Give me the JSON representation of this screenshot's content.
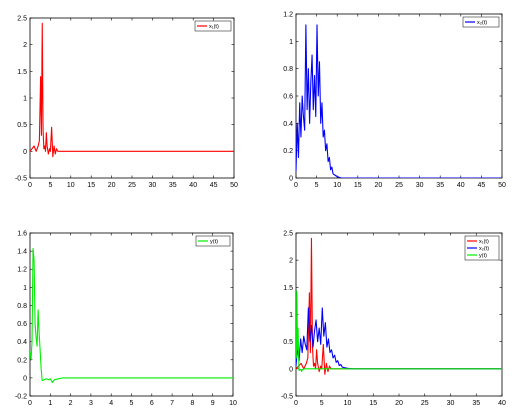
{
  "chart_data": [
    {
      "type": "line",
      "xlim": [
        0,
        50
      ],
      "ylim": [
        -0.5,
        2.5
      ],
      "xticks": [
        "0",
        "5",
        "10",
        "15",
        "20",
        "25",
        "30",
        "35",
        "40",
        "45",
        "50"
      ],
      "yticks": [
        "-0.5",
        "0",
        "0.5",
        "1",
        "1.5",
        "2",
        "2.5"
      ],
      "legend_position": "top-right",
      "series": [
        {
          "name": "x₁(t)",
          "color": "#ff0000",
          "x": [
            0,
            0.5,
            1,
            1.5,
            2,
            2.3,
            2.6,
            2.8,
            3,
            3.2,
            3.4,
            3.6,
            3.8,
            4,
            4.2,
            4.5,
            4.8,
            5,
            5.3,
            5.6,
            5.9,
            6.2,
            6.5,
            6.8,
            7,
            8,
            10,
            20,
            30,
            40,
            50
          ],
          "y": [
            0,
            0.05,
            0.1,
            0.0,
            0.1,
            0.2,
            1.4,
            0.3,
            2.4,
            0.4,
            0.05,
            0.1,
            0.0,
            0.35,
            0.1,
            -0.05,
            0.05,
            0.0,
            0.45,
            -0.1,
            0.1,
            -0.05,
            0.05,
            0.0,
            0.0,
            0.0,
            0.0,
            0.0,
            0.0,
            0.0,
            0.0
          ]
        }
      ]
    },
    {
      "type": "line",
      "xlim": [
        0,
        50
      ],
      "ylim": [
        0,
        1.2
      ],
      "xticks": [
        "0",
        "5",
        "10",
        "15",
        "20",
        "25",
        "30",
        "35",
        "40",
        "45",
        "50"
      ],
      "yticks": [
        "0",
        "0.2",
        "0.4",
        "0.6",
        "0.8",
        "1",
        "1.2"
      ],
      "legend_position": "top-right",
      "series": [
        {
          "name": "x₂(t)",
          "color": "#0000ff",
          "x": [
            0,
            0.3,
            0.6,
            0.9,
            1.2,
            1.5,
            1.8,
            2.1,
            2.4,
            2.7,
            3,
            3.3,
            3.6,
            3.9,
            4.2,
            4.5,
            4.8,
            5.1,
            5.4,
            5.7,
            6,
            6.3,
            6.6,
            6.9,
            7.2,
            7.5,
            7.8,
            8.1,
            8.4,
            8.7,
            9,
            9.5,
            10,
            11,
            12,
            15,
            20,
            30,
            40,
            50
          ],
          "y": [
            0.05,
            0.4,
            0.15,
            0.55,
            0.3,
            0.6,
            0.45,
            0.35,
            1.12,
            0.5,
            0.8,
            0.4,
            0.7,
            0.9,
            0.5,
            0.75,
            0.45,
            1.12,
            0.6,
            0.85,
            0.4,
            0.55,
            0.3,
            0.35,
            0.2,
            0.25,
            0.12,
            0.15,
            0.06,
            0.08,
            0.03,
            0.02,
            0.01,
            0.0,
            0.0,
            0.0,
            0.0,
            0.0,
            0.0,
            0.0
          ]
        }
      ]
    },
    {
      "type": "line",
      "xlim": [
        0,
        10
      ],
      "ylim": [
        -0.2,
        1.6
      ],
      "xticks": [
        "0",
        "1",
        "2",
        "3",
        "4",
        "5",
        "6",
        "7",
        "8",
        "9",
        "10"
      ],
      "yticks": [
        "-0.2",
        "0",
        "0.2",
        "0.4",
        "0.6",
        "0.8",
        "1",
        "1.2",
        "1.4",
        "1.6"
      ],
      "legend_position": "top-right",
      "series": [
        {
          "name": "y(t)",
          "color": "#00ee00",
          "x": [
            0,
            0.05,
            0.1,
            0.15,
            0.2,
            0.25,
            0.3,
            0.35,
            0.4,
            0.45,
            0.5,
            0.55,
            0.6,
            0.7,
            0.8,
            0.9,
            1.0,
            1.1,
            1.2,
            1.4,
            1.6,
            2,
            3,
            5,
            7,
            10
          ],
          "y": [
            0.3,
            0.2,
            0.4,
            1.43,
            1.3,
            0.6,
            0.45,
            0.35,
            0.75,
            0.5,
            0.3,
            0.1,
            -0.03,
            -0.02,
            -0.01,
            -0.02,
            -0.01,
            -0.05,
            -0.02,
            -0.01,
            0.0,
            0.0,
            0.0,
            0.0,
            0.0,
            0.0
          ]
        }
      ]
    },
    {
      "type": "line",
      "xlim": [
        0,
        40
      ],
      "ylim": [
        -0.5,
        2.5
      ],
      "xticks": [
        "0",
        "5",
        "10",
        "15",
        "20",
        "25",
        "30",
        "35",
        "40"
      ],
      "yticks": [
        "-0.5",
        "0",
        "0.5",
        "1",
        "1.5",
        "2",
        "2.5"
      ],
      "legend_position": "top-right",
      "series": [
        {
          "name": "x₁(t)",
          "color": "#ff0000",
          "x": [
            0,
            0.5,
            1,
            1.5,
            2,
            2.3,
            2.6,
            2.8,
            3,
            3.2,
            3.4,
            3.6,
            3.8,
            4,
            4.2,
            4.5,
            4.8,
            5,
            5.3,
            5.6,
            5.9,
            6.2,
            6.5,
            6.8,
            7,
            8,
            10,
            20,
            30,
            40
          ],
          "y": [
            0,
            0.05,
            0.1,
            0.0,
            0.1,
            0.2,
            1.4,
            0.3,
            2.4,
            0.4,
            0.05,
            0.1,
            0.0,
            0.35,
            0.1,
            -0.05,
            0.05,
            0.0,
            0.45,
            -0.1,
            0.1,
            -0.05,
            0.05,
            0.0,
            0.0,
            0.0,
            0.0,
            0.0,
            0.0,
            0.0
          ]
        },
        {
          "name": "x₂(t)",
          "color": "#0000ff",
          "x": [
            0,
            0.3,
            0.6,
            0.9,
            1.2,
            1.5,
            1.8,
            2.1,
            2.4,
            2.7,
            3,
            3.3,
            3.6,
            3.9,
            4.2,
            4.5,
            4.8,
            5.1,
            5.4,
            5.7,
            6,
            6.3,
            6.6,
            6.9,
            7.2,
            7.5,
            7.8,
            8.1,
            8.4,
            8.7,
            9,
            9.5,
            10,
            11,
            12,
            15,
            20,
            30,
            40
          ],
          "y": [
            0.05,
            0.4,
            0.15,
            0.55,
            0.3,
            0.6,
            0.45,
            0.35,
            1.12,
            0.5,
            0.8,
            0.4,
            0.7,
            0.9,
            0.5,
            0.75,
            0.45,
            1.12,
            0.6,
            0.85,
            0.4,
            0.55,
            0.3,
            0.35,
            0.2,
            0.25,
            0.12,
            0.15,
            0.06,
            0.08,
            0.03,
            0.02,
            0.01,
            0.0,
            0.0,
            0.0,
            0.0,
            0.0,
            0.0
          ]
        },
        {
          "name": "y(t)",
          "color": "#00ee00",
          "x": [
            0,
            0.05,
            0.1,
            0.15,
            0.2,
            0.25,
            0.3,
            0.35,
            0.4,
            0.45,
            0.5,
            0.55,
            0.6,
            0.7,
            0.8,
            0.9,
            1.0,
            1.1,
            1.2,
            1.4,
            1.6,
            2,
            3,
            5,
            7,
            10,
            20,
            40
          ],
          "y": [
            0.3,
            0.2,
            0.4,
            1.43,
            1.3,
            0.6,
            0.45,
            0.35,
            0.75,
            0.5,
            0.3,
            0.1,
            -0.03,
            -0.02,
            -0.01,
            -0.02,
            -0.01,
            -0.05,
            -0.02,
            -0.01,
            0.0,
            0.0,
            0.0,
            0.0,
            0.0,
            0.0,
            0.0,
            0.0
          ]
        }
      ]
    }
  ]
}
